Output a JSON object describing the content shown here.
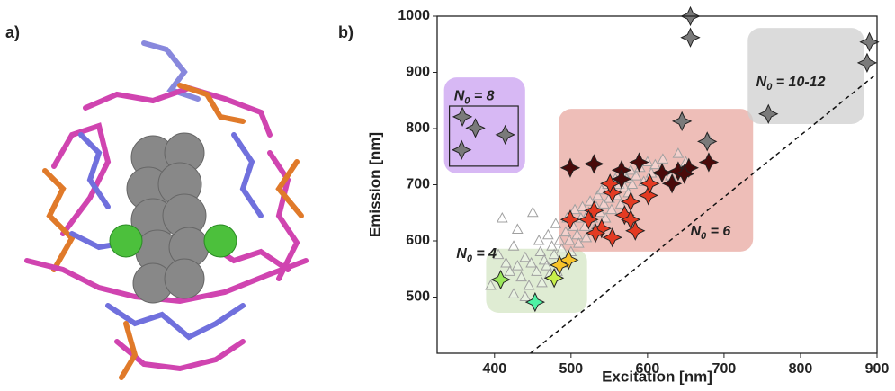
{
  "panel_labels": [
    "a)",
    "b)"
  ],
  "chart_data": {
    "type": "scatter",
    "x_label": "Excitation [nm]",
    "y_label": "Emission [nm]",
    "xlim": [
      325,
      900
    ],
    "ylim": [
      400,
      1000
    ],
    "xticks": [
      400,
      500,
      600,
      700,
      800,
      900
    ],
    "yticks": [
      500,
      600,
      700,
      800,
      900,
      1000
    ],
    "grid": false,
    "series": [
      {
        "marker": "triangle",
        "color": "#a0a0a0",
        "x": [
          405,
          415,
          420,
          425,
          430,
          435,
          440,
          445,
          448,
          450,
          455,
          458,
          460,
          462,
          465,
          468,
          470,
          472,
          475,
          478,
          480,
          482,
          485,
          488,
          490,
          493,
          495,
          498,
          500,
          503,
          505,
          508,
          510,
          513,
          515,
          518,
          520,
          523,
          525,
          528,
          530,
          533,
          535,
          538,
          540,
          543,
          545,
          548,
          550,
          553,
          555,
          558,
          560,
          563,
          565,
          568,
          570,
          573,
          575,
          578,
          580,
          585,
          590,
          595,
          600,
          605,
          610,
          620,
          630,
          640,
          650,
          680,
          410,
          430,
          395,
          440,
          425
        ],
        "values": [
          575,
          560,
          545,
          590,
          555,
          535,
          570,
          520,
          560,
          650,
          545,
          600,
          580,
          525,
          565,
          555,
          610,
          540,
          590,
          575,
          630,
          545,
          600,
          585,
          560,
          615,
          640,
          600,
          580,
          625,
          655,
          610,
          595,
          640,
          660,
          625,
          605,
          650,
          670,
          640,
          620,
          660,
          680,
          650,
          690,
          665,
          640,
          700,
          675,
          655,
          690,
          710,
          680,
          700,
          665,
          720,
          695,
          710,
          685,
          725,
          700,
          715,
          730,
          705,
          740,
          720,
          735,
          745,
          715,
          755,
          740,
          780,
          640,
          620,
          520,
          500,
          505
        ]
      },
      {
        "marker": "star",
        "color": "#7a7a7a",
        "x": [
          656,
          656,
          890,
          887,
          758,
          645,
          358,
          375,
          414,
          357,
          678
        ],
        "values": [
          1000,
          962,
          954,
          917,
          826,
          813,
          821,
          801,
          789,
          762,
          777
        ]
      },
      {
        "marker": "star",
        "color": "#4a0a0a",
        "x": [
          499,
          530,
          566,
          566,
          589,
          619,
          640,
          654,
          648,
          680,
          632
        ],
        "values": [
          730,
          737,
          726,
          710,
          740,
          721,
          724,
          730,
          719,
          740,
          702
        ]
      },
      {
        "marker": "star",
        "color": "#e33a22",
        "x": [
          499,
          530,
          554,
          551,
          578,
          601,
          570,
          540,
          532,
          554,
          578,
          584,
          603,
          523
        ],
        "values": [
          638,
          654,
          686,
          702,
          670,
          681,
          646,
          622,
          614,
          606,
          638,
          618,
          702,
          638
        ]
      },
      {
        "marker": "star",
        "color": "#f7c42a",
        "x": [
          497,
          485
        ],
        "values": [
          566,
          557
        ]
      },
      {
        "marker": "star",
        "color": "#c8f04a",
        "x": [
          478
        ],
        "values": [
          534
        ]
      },
      {
        "marker": "star",
        "color": "#9be85a",
        "x": [
          408
        ],
        "values": [
          531
        ]
      },
      {
        "marker": "star",
        "color": "#4ef2a4",
        "x": [
          453
        ],
        "values": [
          491
        ]
      }
    ],
    "reference_line": {
      "x": [
        447,
        900
      ],
      "values": [
        400,
        898
      ]
    },
    "annotations": [
      {
        "label": [
          "N",
          "0",
          " = 8"
        ],
        "x": 347,
        "y": 857,
        "region": [
          334,
          440,
          720,
          891
        ],
        "color": "#c9a0f0"
      },
      {
        "label": [
          "N",
          "0",
          " = 4"
        ],
        "x": 350,
        "y": 576,
        "region": [
          389,
          521,
          472,
          586
        ],
        "color": "#d4e6c4"
      },
      {
        "label": [
          "N",
          "0",
          " = 6"
        ],
        "x": 656,
        "y": 616,
        "region": [
          484,
          738,
          581,
          835
        ],
        "color": "#e8a8a0"
      },
      {
        "label": [
          "N",
          "0",
          " = 10-12"
        ],
        "x": 742,
        "y": 882,
        "region": [
          731,
          883,
          808,
          979
        ],
        "color": "#cfcfcf"
      }
    ],
    "inner_box": [
      341,
      431,
      733,
      840
    ]
  }
}
